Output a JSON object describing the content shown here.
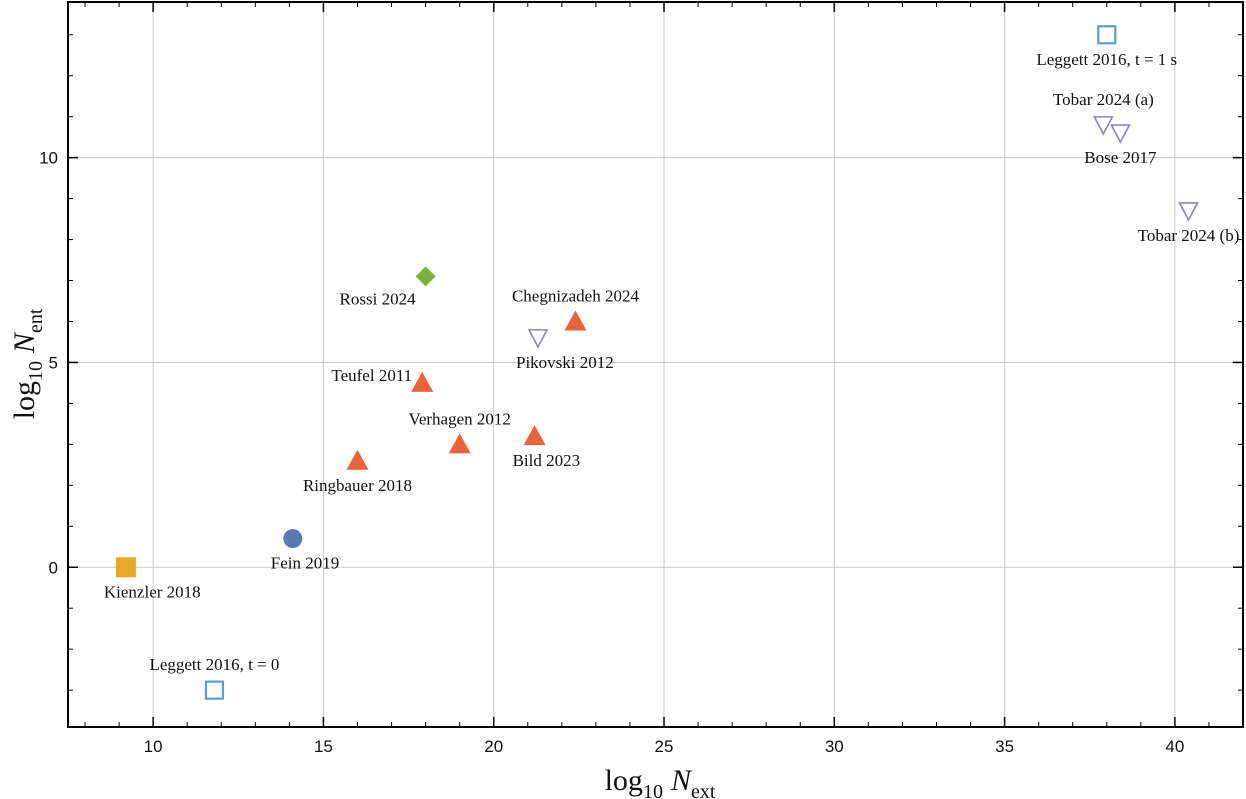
{
  "chart_data": {
    "type": "scatter",
    "title": "",
    "xlabel": {
      "base": "log",
      "sub": "10",
      "var": "N",
      "var_sub": "ext"
    },
    "ylabel": {
      "base": "log",
      "sub": "10",
      "var": "N",
      "var_sub": "ent"
    },
    "xlim": [
      7.5,
      42
    ],
    "ylim": [
      -3.9,
      13.8
    ],
    "x_ticks": [
      10,
      15,
      20,
      25,
      30,
      35,
      40
    ],
    "y_ticks": [
      0,
      5,
      10
    ],
    "x_tick_labels": [
      "10",
      "15",
      "20",
      "25",
      "30",
      "35",
      "40"
    ],
    "y_tick_labels": [
      "0",
      "5",
      "10"
    ],
    "grid": true,
    "legend": "none",
    "colors": {
      "triangle": "#e8623a",
      "open_square": "#5a9fd0",
      "open_triangle": "#8a86bb",
      "diamond": "#7fb23a",
      "circle": "#5a78b4",
      "square": "#e8a92a"
    },
    "points": [
      {
        "label": "Leggett 2016, t = 1 s",
        "x": 38.0,
        "y": 13.0,
        "marker": "open_square",
        "label_pos": "below"
      },
      {
        "label": "Tobar 2024 (a)",
        "x": 37.9,
        "y": 10.8,
        "marker": "open_triangle",
        "label_pos": "above"
      },
      {
        "label": "Bose 2017",
        "x": 38.4,
        "y": 10.6,
        "marker": "open_triangle",
        "label_pos": "below"
      },
      {
        "label": "Tobar 2024 (b)",
        "x": 40.4,
        "y": 8.7,
        "marker": "open_triangle",
        "label_pos": "below"
      },
      {
        "label": "Rossi 2024",
        "x": 18.0,
        "y": 7.1,
        "marker": "diamond",
        "label_pos": "below-left"
      },
      {
        "label": "Chegnizadeh 2024",
        "x": 22.4,
        "y": 6.0,
        "marker": "triangle",
        "label_pos": "above"
      },
      {
        "label": "Pikovski 2012",
        "x": 21.3,
        "y": 5.6,
        "marker": "open_triangle",
        "label_pos": "below-right"
      },
      {
        "label": "Teufel 2011",
        "x": 17.9,
        "y": 4.5,
        "marker": "triangle",
        "label_pos": "left"
      },
      {
        "label": "Verhagen 2012",
        "x": 19.0,
        "y": 3.0,
        "marker": "triangle",
        "label_pos": "above"
      },
      {
        "label": "Bild 2023",
        "x": 21.2,
        "y": 3.2,
        "marker": "triangle",
        "label_pos": "below-right"
      },
      {
        "label": "Ringbauer 2018",
        "x": 16.0,
        "y": 2.6,
        "marker": "triangle",
        "label_pos": "below"
      },
      {
        "label": "Fein 2019",
        "x": 14.1,
        "y": 0.7,
        "marker": "circle",
        "label_pos": "below-right"
      },
      {
        "label": "Kienzler 2018",
        "x": 9.2,
        "y": 0.0,
        "marker": "square",
        "label_pos": "below-right"
      },
      {
        "label": "Leggett 2016, t = 0",
        "x": 11.8,
        "y": -3.0,
        "marker": "open_square",
        "label_pos": "above"
      }
    ]
  }
}
